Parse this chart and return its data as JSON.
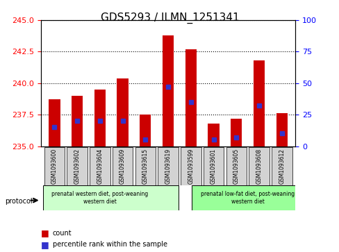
{
  "title": "GDS5293 / ILMN_1251341",
  "samples": [
    "GSM1093600",
    "GSM1093602",
    "GSM1093604",
    "GSM1093609",
    "GSM1093615",
    "GSM1093619",
    "GSM1093599",
    "GSM1093601",
    "GSM1093605",
    "GSM1093608",
    "GSM1093612"
  ],
  "bar_heights": [
    238.7,
    239.0,
    239.5,
    240.4,
    237.5,
    243.8,
    242.7,
    236.8,
    237.2,
    241.8,
    237.6
  ],
  "percentile_ranks": [
    15,
    20,
    20,
    20,
    5,
    47,
    35,
    5,
    7,
    32,
    10
  ],
  "ylim_left": [
    235,
    245
  ],
  "ylim_right": [
    0,
    100
  ],
  "yticks_left": [
    235,
    237.5,
    240,
    242.5,
    245
  ],
  "yticks_right": [
    0,
    25,
    50,
    75,
    100
  ],
  "group1_label": "prenatal western diet, post-weaning\nwestern diet",
  "group2_label": "prenatal low-fat diet, post-weaning\nwestern diet",
  "group1_count": 6,
  "group2_count": 5,
  "protocol_label": "protocol",
  "legend_count": "count",
  "legend_percentile": "percentile rank within the sample",
  "bar_color": "#cc0000",
  "blue_color": "#3333cc",
  "group1_bg": "#ccffcc",
  "group2_bg": "#99ff99",
  "tick_label_bg": "#d3d3d3",
  "title_fontsize": 11,
  "tick_fontsize": 8,
  "axis_label_fontsize": 8
}
